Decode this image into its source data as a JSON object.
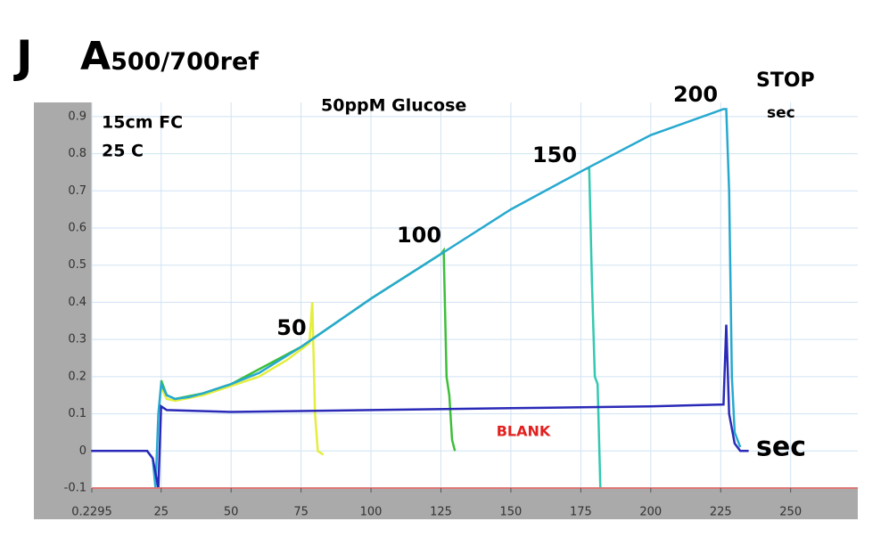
{
  "chart_data": {
    "type": "line",
    "panel_label": "J",
    "title": "A500/700ref",
    "subtitle": "50ppM Glucose",
    "annotations": [
      "15cm FC",
      "25 C",
      "STOP",
      "sec"
    ],
    "xlabel": "sec",
    "xlim": [
      0.2295,
      274
    ],
    "ylim": [
      -0.1,
      0.938
    ],
    "xticks": [
      0.2295,
      25,
      50,
      75,
      100,
      125,
      150,
      175,
      200,
      225,
      250
    ],
    "yticks": [
      -0.1,
      0,
      0.1,
      0.2,
      0.3,
      0.4,
      0.5,
      0.6,
      0.7,
      0.8,
      0.9
    ],
    "grid": true,
    "series": [
      {
        "name": "50",
        "color": "#e4ee3c",
        "x": [
          25,
          27,
          30,
          40,
          50,
          60,
          70,
          78,
          79,
          80,
          81,
          83
        ],
        "values": [
          0.17,
          0.14,
          0.135,
          0.15,
          0.175,
          0.2,
          0.245,
          0.29,
          0.4,
          0.1,
          0.0,
          -0.01
        ]
      },
      {
        "name": "100",
        "color": "#3cbf3a",
        "x": [
          25,
          27,
          30,
          40,
          50,
          75,
          100,
          125,
          126,
          127,
          128,
          129,
          130
        ],
        "values": [
          0.19,
          0.15,
          0.14,
          0.155,
          0.18,
          0.28,
          0.41,
          0.53,
          0.54,
          0.2,
          0.15,
          0.03,
          0.0
        ]
      },
      {
        "name": "150",
        "color": "#33c9b0",
        "x": [
          177,
          178,
          179,
          180,
          181,
          182
        ],
        "values": [
          0.76,
          0.76,
          0.45,
          0.2,
          0.18,
          -0.1
        ]
      },
      {
        "name": "200",
        "color": "#27a9cf",
        "x": [
          0,
          20,
          22,
          23,
          24,
          25,
          27,
          30,
          35,
          40,
          50,
          60,
          75,
          100,
          125,
          150,
          177,
          200,
          226,
          227,
          228,
          229,
          230,
          232
        ],
        "values": [
          0,
          0,
          -0.02,
          -0.1,
          0.1,
          0.18,
          0.15,
          0.14,
          0.145,
          0.155,
          0.18,
          0.21,
          0.28,
          0.41,
          0.53,
          0.65,
          0.76,
          0.85,
          0.92,
          0.92,
          0.7,
          0.2,
          0.05,
          0.01
        ]
      },
      {
        "name": "BLANK",
        "color": "#2a2ab8",
        "x": [
          0,
          20,
          22,
          24,
          25,
          27,
          50,
          100,
          150,
          200,
          226,
          227,
          228,
          230,
          232,
          235
        ],
        "values": [
          0,
          0,
          -0.02,
          -0.1,
          0.12,
          0.11,
          0.105,
          0.11,
          0.115,
          0.12,
          0.125,
          0.34,
          0.1,
          0.02,
          0.0,
          0.0
        ]
      }
    ]
  }
}
